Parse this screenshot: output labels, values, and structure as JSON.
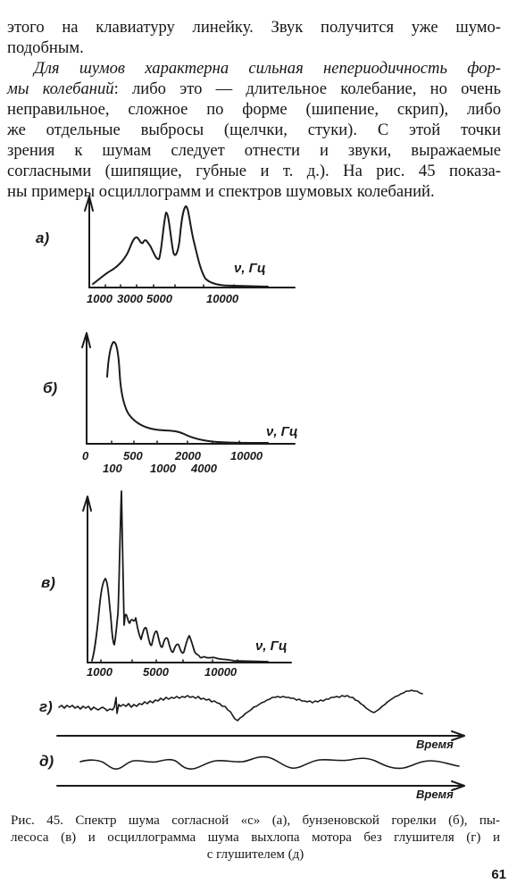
{
  "paragraph1": {
    "lines": [
      "этого на клавиатуру линейку. Звук получится уже шумо-",
      "подобным."
    ]
  },
  "paragraph2": {
    "italic_part": "Для шумов характерна сильная непериодичность формы колебаний",
    "line1": "Для шумов характерна сильная непериодичность фор-",
    "line2_italic": "мы колебаний",
    "line2_rest": ": либо это — длительное колебание, но очень",
    "lines": [
      "неправильное, сложное по форме (шипение, скрип), либо",
      "же отдельные выбросы (щелчки, стуки). С этой точки",
      "зрения к шумам следует отнести и звуки, выражаемые",
      "согласными (шипящие, губные и т. д.). На рис. 45 показа-",
      "ны примеры осциллограмм и спектров шумовых колебаний."
    ]
  },
  "figure": {
    "panel_a": {
      "label": "а)",
      "axis_label": "ν, Гц",
      "ticks": [
        "1000",
        "3000",
        "5000",
        "10000"
      ]
    },
    "panel_b": {
      "label": "б)",
      "axis_label": "ν, Гц",
      "ticks_upper": [
        "0",
        "500",
        "2000",
        "10000"
      ],
      "ticks_lower": [
        "100",
        "1000",
        "4000"
      ]
    },
    "panel_v": {
      "label": "в)",
      "axis_label": "ν, Гц",
      "ticks": [
        "1000",
        "5000",
        "10000"
      ]
    },
    "panel_g": {
      "label": "г)",
      "axis_label": "Время"
    },
    "panel_d": {
      "label": "д)",
      "axis_label": "Время"
    }
  },
  "caption": {
    "line1": "Рис. 45. Спектр шума согласной «с» (а), бунзеновской горелки (б), пы-",
    "line2": "лесоса (в) и осциллограмма шума выхлопа мотора без глушителя (г) и",
    "line3": "с глушителем (д)"
  },
  "page_number": "61"
}
